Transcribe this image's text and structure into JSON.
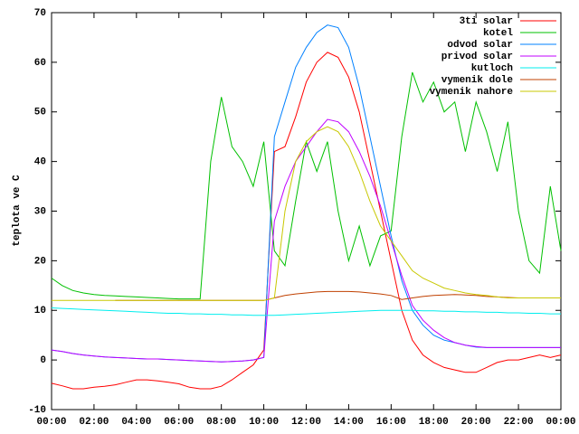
{
  "chart_data": {
    "type": "line",
    "y_label": "teplota ve C",
    "x": [
      0,
      0.5,
      1,
      1.5,
      2,
      2.5,
      3,
      3.5,
      4,
      4.5,
      5,
      5.5,
      6,
      6.5,
      7,
      7.5,
      8,
      8.5,
      9,
      9.5,
      10,
      10.5,
      11,
      11.5,
      12,
      12.5,
      13,
      13.5,
      14,
      14.5,
      15,
      15.5,
      16,
      16.5,
      17,
      17.5,
      18,
      18.5,
      19,
      19.5,
      20,
      20.5,
      21,
      21.5,
      22,
      22.5,
      23,
      23.5,
      24
    ],
    "xlim": [
      0,
      24
    ],
    "xticks": [
      {
        "value": 0,
        "label": "00:00"
      },
      {
        "value": 2,
        "label": "02:00"
      },
      {
        "value": 4,
        "label": "04:00"
      },
      {
        "value": 6,
        "label": "06:00"
      },
      {
        "value": 8,
        "label": "08:00"
      },
      {
        "value": 10,
        "label": "10:00"
      },
      {
        "value": 12,
        "label": "12:00"
      },
      {
        "value": 14,
        "label": "14:00"
      },
      {
        "value": 16,
        "label": "16:00"
      },
      {
        "value": 18,
        "label": "18:00"
      },
      {
        "value": 20,
        "label": "20:00"
      },
      {
        "value": 22,
        "label": "22:00"
      },
      {
        "value": 24,
        "label": "00:00"
      }
    ],
    "ylim": [
      -10,
      70
    ],
    "yticks": [
      -10,
      0,
      10,
      20,
      30,
      40,
      50,
      60,
      70
    ],
    "legend": "top-right",
    "series": [
      {
        "name": "3ti solar",
        "color": "#ff0000",
        "values": [
          -4.7,
          -5.2,
          -5.8,
          -5.8,
          -5.5,
          -5.3,
          -5,
          -4.5,
          -4,
          -4,
          -4.2,
          -4.5,
          -4.8,
          -5.5,
          -5.8,
          -5.8,
          -5.3,
          -4,
          -2.5,
          -1,
          2,
          42,
          43,
          49,
          56,
          60,
          62,
          61,
          57,
          50,
          40,
          30,
          20,
          10,
          4,
          1,
          -0.5,
          -1.5,
          -2,
          -2.5,
          -2.5,
          -1.5,
          -0.5,
          0,
          0,
          0.5,
          1,
          0.5,
          1
        ]
      },
      {
        "name": "kotel",
        "color": "#00c000",
        "values": [
          16.5,
          15,
          14,
          13.5,
          13.2,
          13,
          12.9,
          12.8,
          12.7,
          12.6,
          12.5,
          12.4,
          12.3,
          12.3,
          12.3,
          40,
          53,
          43,
          40,
          35,
          44,
          22,
          19,
          32,
          44,
          38,
          44,
          30,
          20,
          27,
          19,
          25,
          26,
          45,
          58,
          52,
          56,
          50,
          52,
          42,
          52,
          46,
          38,
          48,
          30,
          20,
          17.5,
          35,
          22
        ]
      },
      {
        "name": "odvod solar",
        "color": "#0080ff",
        "values": [
          2,
          1.7,
          1.3,
          1,
          0.8,
          0.6,
          0.5,
          0.4,
          0.3,
          0.2,
          0.2,
          0.1,
          0,
          -0.1,
          -0.2,
          -0.3,
          -0.4,
          -0.3,
          -0.2,
          0,
          0.5,
          45,
          52,
          59,
          63,
          66,
          67.5,
          67,
          63,
          55,
          45,
          35,
          25,
          16,
          10,
          7,
          5,
          4,
          3.5,
          3,
          2.6,
          2.5,
          2.5,
          2.5,
          2.5,
          2.5,
          2.5,
          2.5,
          2.5
        ]
      },
      {
        "name": "privod solar",
        "color": "#c000ff",
        "values": [
          2,
          1.7,
          1.3,
          1,
          0.8,
          0.6,
          0.5,
          0.4,
          0.3,
          0.2,
          0.2,
          0.1,
          0,
          -0.1,
          -0.2,
          -0.3,
          -0.4,
          -0.3,
          -0.2,
          0,
          0.5,
          28,
          35,
          40,
          43,
          46,
          48.5,
          48,
          46,
          42,
          37,
          31,
          24,
          17,
          11,
          8,
          6,
          4.5,
          3.5,
          3,
          2.7,
          2.5,
          2.5,
          2.5,
          2.5,
          2.5,
          2.5,
          2.5,
          2.5
        ]
      },
      {
        "name": "kutloch",
        "color": "#00eeee",
        "values": [
          10.5,
          10.4,
          10.3,
          10.2,
          10.1,
          10,
          9.9,
          9.8,
          9.7,
          9.6,
          9.5,
          9.4,
          9.4,
          9.3,
          9.3,
          9.2,
          9.2,
          9.1,
          9.1,
          9,
          9,
          9,
          9.1,
          9.2,
          9.3,
          9.4,
          9.5,
          9.6,
          9.7,
          9.8,
          9.9,
          10,
          10,
          10,
          10,
          9.9,
          9.9,
          9.8,
          9.8,
          9.7,
          9.7,
          9.6,
          9.6,
          9.5,
          9.5,
          9.4,
          9.4,
          9.3,
          9.3
        ]
      },
      {
        "name": "vymenik dole",
        "color": "#c04000",
        "values": [
          null,
          null,
          null,
          null,
          null,
          null,
          12,
          12,
          12,
          12,
          12,
          12,
          12,
          12,
          12,
          12,
          12,
          12,
          12,
          12,
          12,
          12.5,
          13,
          13.3,
          13.5,
          13.7,
          13.8,
          13.8,
          13.8,
          13.7,
          13.5,
          13.3,
          13,
          12.2,
          12.5,
          12.8,
          13,
          13.1,
          13.2,
          13.1,
          13,
          12.8,
          12.7,
          12.6,
          12.5,
          12.5,
          12.5,
          12.5,
          12.5
        ]
      },
      {
        "name": "vymenik nahore",
        "color": "#c8c800",
        "values": [
          12,
          12,
          12,
          12,
          12,
          12,
          12,
          12,
          12,
          12,
          12,
          12,
          12,
          12,
          12,
          12,
          12,
          12,
          12,
          12,
          12,
          12.5,
          30,
          40,
          44,
          46,
          47,
          46,
          43,
          38,
          32,
          27,
          24,
          21,
          18,
          16.5,
          15.5,
          14.5,
          14,
          13.5,
          13.2,
          13,
          12.7,
          12.5,
          12.5,
          12.5,
          12.5,
          12.5,
          12.5
        ]
      }
    ]
  }
}
